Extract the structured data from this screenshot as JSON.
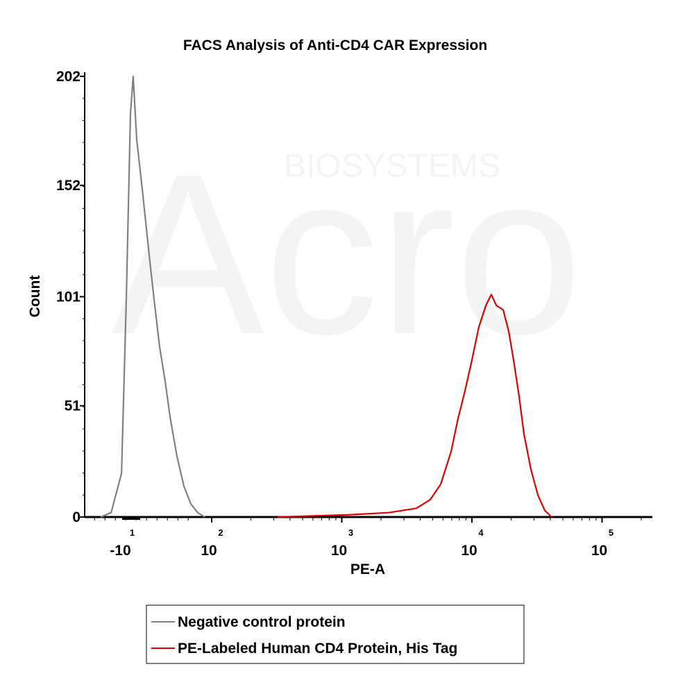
{
  "chart_data": {
    "type": "line",
    "title": "FACS Analysis of Anti-CD4 CAR Expression",
    "xlabel": "PE-A",
    "ylabel": "Count",
    "x_scale": "biexponential (log decades)",
    "xlim_decades": [
      1.02,
      5.39
    ],
    "ylim": [
      0,
      202
    ],
    "y_ticks": [
      0,
      51,
      101,
      152,
      202
    ],
    "x_ticks": [
      {
        "base": "-10",
        "exp": "1",
        "pos": 1.32
      },
      {
        "base": "10",
        "exp": "2",
        "pos": 2
      },
      {
        "base": "10",
        "exp": "3",
        "pos": 3
      },
      {
        "base": "10",
        "exp": "4",
        "pos": 4
      },
      {
        "base": "10",
        "exp": "5",
        "pos": 5
      }
    ],
    "series": [
      {
        "name": "Negative control protein",
        "color": "#808080",
        "x": [
          1.147,
          1.227,
          1.307,
          1.344,
          1.376,
          1.397,
          1.424,
          1.467,
          1.52,
          1.557,
          1.6,
          1.643,
          1.68,
          1.733,
          1.787,
          1.84,
          1.893,
          1.947
        ],
        "y": [
          0,
          2,
          20,
          100,
          185,
          202,
          173,
          150,
          120,
          100,
          78,
          62,
          46,
          28,
          14,
          6,
          2,
          0
        ]
      },
      {
        "name": "PE-Labeled Human CD4 Protein, His Tag",
        "color": "#e00000",
        "x": [
          2.507,
          3.04,
          3.36,
          3.573,
          3.68,
          3.76,
          3.84,
          3.893,
          3.947,
          4.0,
          4.053,
          4.107,
          4.149,
          4.187,
          4.24,
          4.283,
          4.32,
          4.363,
          4.4,
          4.453,
          4.507,
          4.56,
          4.613
        ],
        "y": [
          0,
          1,
          2,
          4,
          8,
          15,
          30,
          45,
          58,
          72,
          87,
          97,
          102,
          97,
          95,
          85,
          72,
          55,
          38,
          22,
          10,
          3,
          0
        ]
      }
    ],
    "legend_placement": "bottom-center",
    "grid": false
  },
  "watermark": {
    "brand": "Acro",
    "sub": "BIOSYSTEMS"
  }
}
